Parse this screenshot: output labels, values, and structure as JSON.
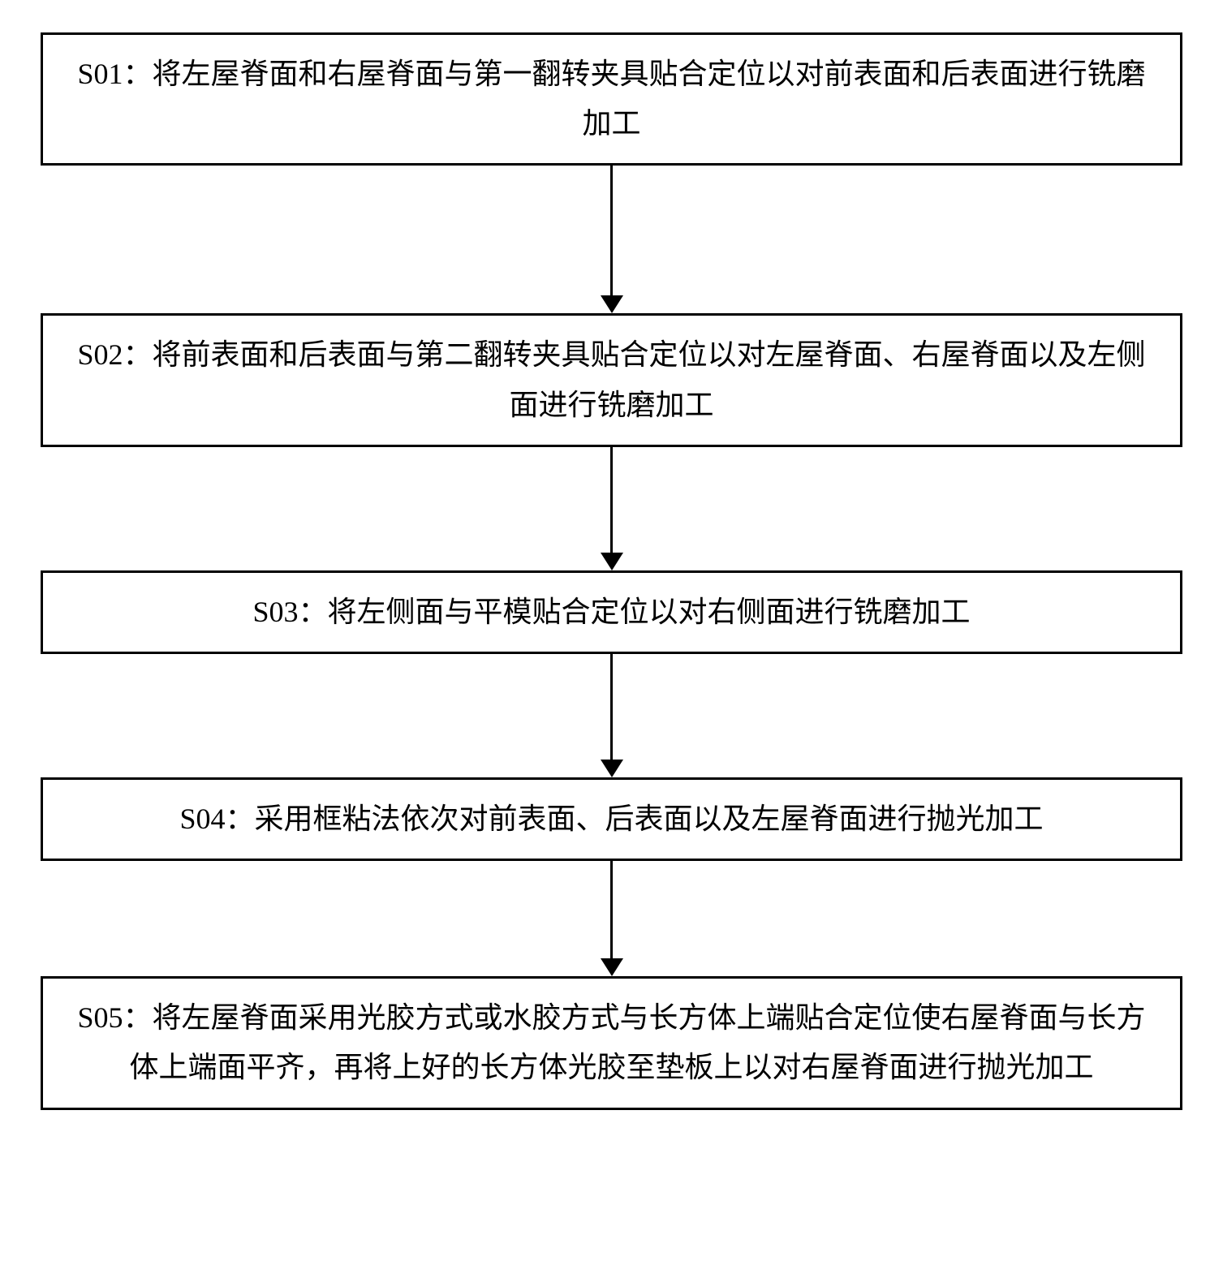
{
  "flowchart": {
    "type": "flowchart",
    "background_color": "#ffffff",
    "box_border_color": "#000000",
    "box_border_width": 3,
    "text_color": "#000000",
    "font_family": "SimSun",
    "font_size_pt": 27,
    "line_height": 1.7,
    "arrow_line_width": 3,
    "arrow_head_width": 28,
    "arrow_head_height": 22,
    "box_padding_v": 18,
    "box_padding_h": 40,
    "steps": [
      {
        "id": "S01",
        "text": "S01：将左屋脊面和右屋脊面与第一翻转夹具贴合定位以对前表面和后表面进行铣磨加工",
        "arrow_after_height": 160
      },
      {
        "id": "S02",
        "text": "S02：将前表面和后表面与第二翻转夹具贴合定位以对左屋脊面、右屋脊面以及左侧面进行铣磨加工",
        "arrow_after_height": 130
      },
      {
        "id": "S03",
        "text": "S03：将左侧面与平模贴合定位以对右侧面进行铣磨加工",
        "arrow_after_height": 130
      },
      {
        "id": "S04",
        "text": "S04：采用框粘法依次对前表面、后表面以及左屋脊面进行抛光加工",
        "arrow_after_height": 120
      },
      {
        "id": "S05",
        "text": "S05：将左屋脊面采用光胶方式或水胶方式与长方体上端贴合定位使右屋脊面与长方体上端面平齐，再将上好的长方体光胶至垫板上以对右屋脊面进行抛光加工",
        "arrow_after_height": 0
      }
    ]
  }
}
